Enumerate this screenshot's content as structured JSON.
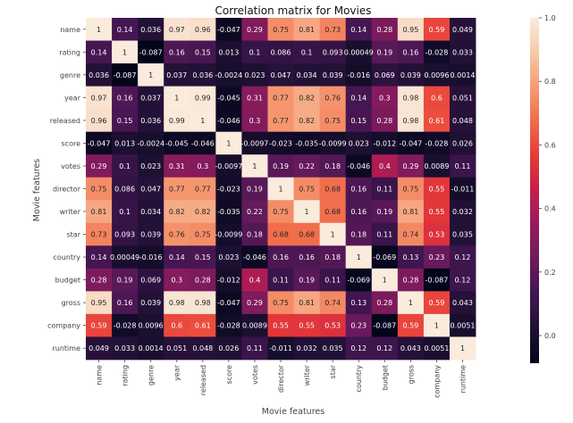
{
  "chart_data": {
    "type": "heatmap",
    "title": "Correlation matrix for Movies",
    "xlabel": "Movie features",
    "ylabel": "Movie features",
    "labels": [
      "name",
      "rating",
      "genre",
      "year",
      "released",
      "score",
      "votes",
      "director",
      "writer",
      "star",
      "country",
      "budget",
      "gross",
      "company",
      "runtime"
    ],
    "values": [
      [
        1,
        0.14,
        0.036,
        0.97,
        0.96,
        -0.047,
        0.29,
        0.75,
        0.81,
        0.73,
        0.14,
        0.28,
        0.95,
        0.59,
        0.049
      ],
      [
        0.14,
        1,
        -0.087,
        0.16,
        0.15,
        0.013,
        0.1,
        0.086,
        0.1,
        0.093,
        0.00049,
        0.19,
        0.16,
        -0.028,
        0.033
      ],
      [
        0.036,
        -0.087,
        1,
        0.037,
        0.036,
        -0.0024,
        0.023,
        0.047,
        0.034,
        0.039,
        -0.016,
        0.069,
        0.039,
        0.0096,
        0.0014
      ],
      [
        0.97,
        0.16,
        0.037,
        1,
        0.99,
        -0.045,
        0.31,
        0.77,
        0.82,
        0.76,
        0.14,
        0.3,
        0.98,
        0.6,
        0.051
      ],
      [
        0.96,
        0.15,
        0.036,
        0.99,
        1,
        -0.046,
        0.3,
        0.77,
        0.82,
        0.75,
        0.15,
        0.28,
        0.98,
        0.61,
        0.048
      ],
      [
        -0.047,
        0.013,
        -0.0024,
        -0.045,
        -0.046,
        1,
        -0.0097,
        -0.023,
        -0.035,
        -0.0099,
        0.023,
        -0.012,
        -0.047,
        -0.028,
        0.026
      ],
      [
        0.29,
        0.1,
        0.023,
        0.31,
        0.3,
        -0.0097,
        1,
        0.19,
        0.22,
        0.18,
        -0.046,
        0.4,
        0.29,
        0.0089,
        0.11
      ],
      [
        0.75,
        0.086,
        0.047,
        0.77,
        0.77,
        -0.023,
        0.19,
        1,
        0.75,
        0.68,
        0.16,
        0.11,
        0.75,
        0.55,
        -0.011
      ],
      [
        0.81,
        0.1,
        0.034,
        0.82,
        0.82,
        -0.035,
        0.22,
        0.75,
        1,
        0.68,
        0.16,
        0.19,
        0.81,
        0.55,
        0.032
      ],
      [
        0.73,
        0.093,
        0.039,
        0.76,
        0.75,
        -0.0099,
        0.18,
        0.68,
        0.68,
        1,
        0.18,
        0.11,
        0.74,
        0.53,
        0.035
      ],
      [
        0.14,
        0.00049,
        -0.016,
        0.14,
        0.15,
        0.023,
        -0.046,
        0.16,
        0.16,
        0.18,
        1,
        -0.069,
        0.13,
        0.23,
        0.12
      ],
      [
        0.28,
        0.19,
        0.069,
        0.3,
        0.28,
        -0.012,
        0.4,
        0.11,
        0.19,
        0.11,
        -0.069,
        1,
        0.28,
        -0.087,
        0.12
      ],
      [
        0.95,
        0.16,
        0.039,
        0.98,
        0.98,
        -0.047,
        0.29,
        0.75,
        0.81,
        0.74,
        0.13,
        0.28,
        1,
        0.59,
        0.043
      ],
      [
        0.59,
        -0.028,
        0.0096,
        0.6,
        0.61,
        -0.028,
        0.0089,
        0.55,
        0.55,
        0.53,
        0.23,
        -0.087,
        0.59,
        1,
        0.0051
      ],
      [
        0.049,
        0.033,
        0.0014,
        0.051,
        0.048,
        0.026,
        0.11,
        -0.011,
        0.032,
        0.035,
        0.12,
        0.12,
        0.043,
        0.0051,
        1
      ]
    ],
    "vmin": -0.087,
    "vmax": 1,
    "colorbar_ticks": [
      0,
      0.2,
      0.4,
      0.6,
      0.8,
      1.0
    ],
    "colorbar_tick_labels": [
      "0.0",
      "0.2",
      "0.4",
      "0.6",
      "0.8",
      "1.0"
    ],
    "colormap": "rocket"
  }
}
